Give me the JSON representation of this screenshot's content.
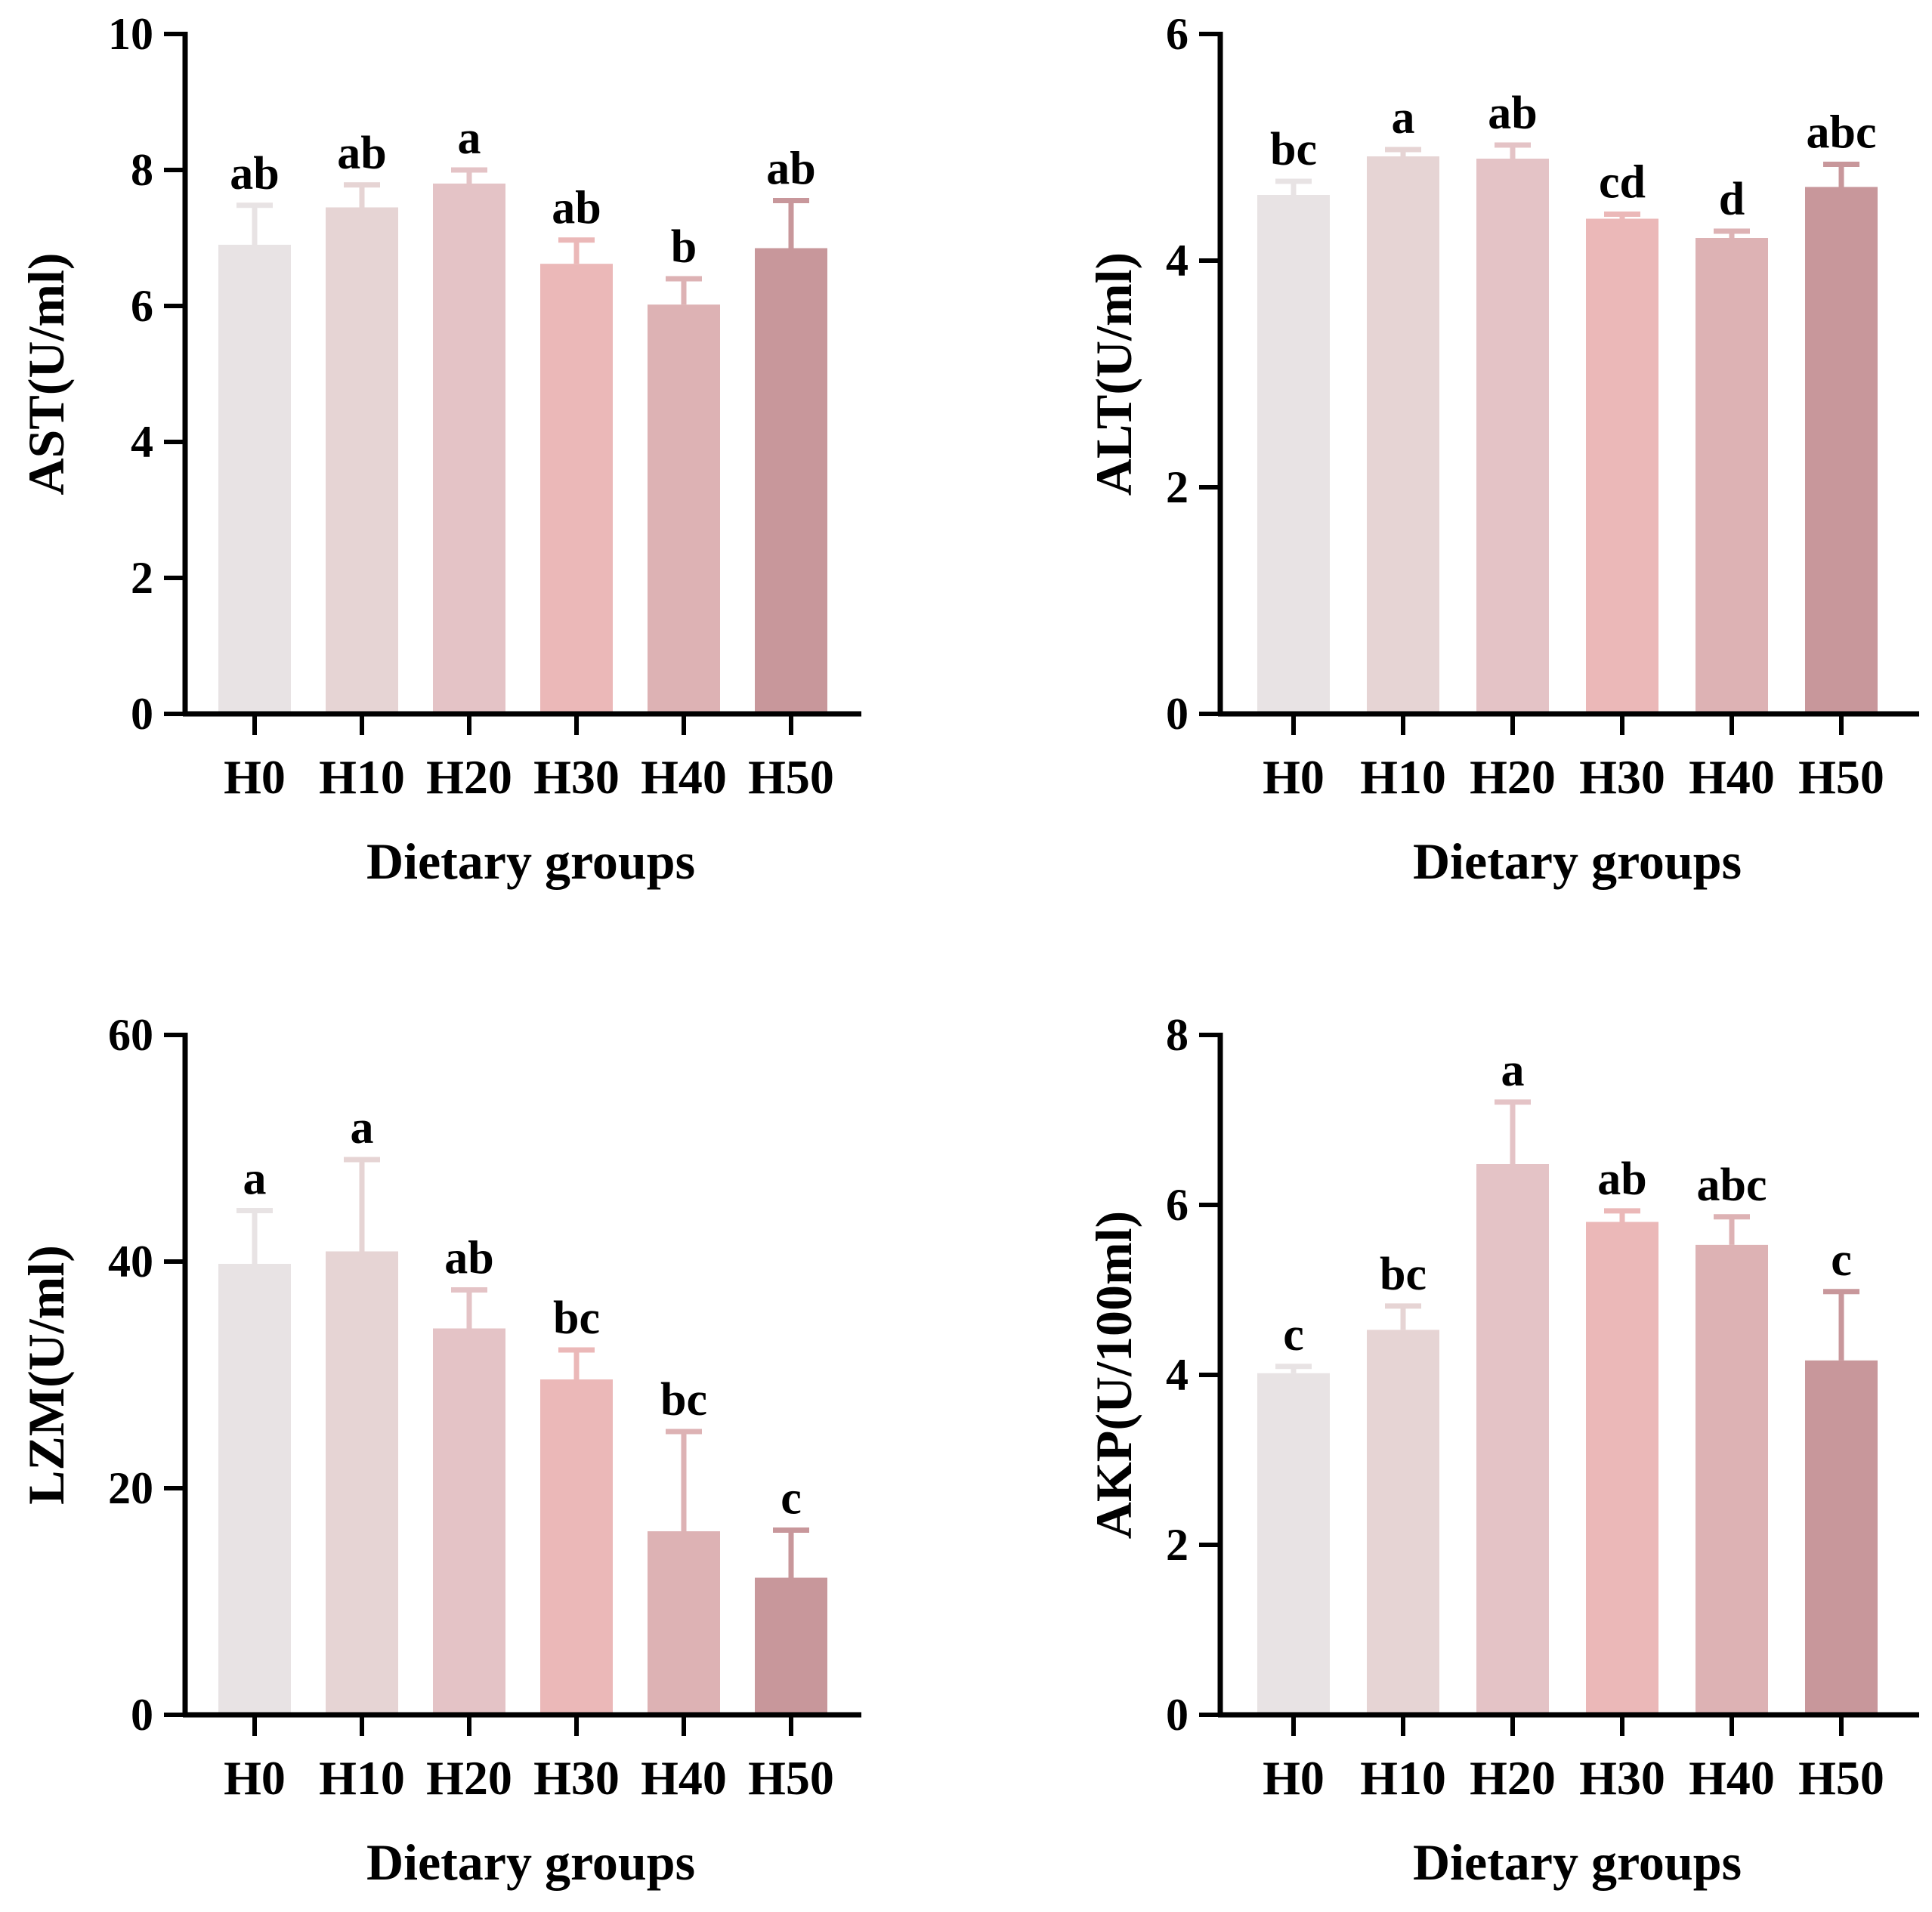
{
  "colors": {
    "bars": [
      "#E8E3E4",
      "#E6D4D4",
      "#E4C3C6",
      "#EBB8B8",
      "#DDB2B4",
      "#C8979B"
    ],
    "axis": "#000000"
  },
  "chart_data": [
    {
      "type": "bar",
      "panel": "top-left",
      "title": "",
      "xlabel": "Dietary groups",
      "ylabel": "AST(U/ml)",
      "categories": [
        "H0",
        "H10",
        "H20",
        "H30",
        "H40",
        "H50"
      ],
      "values": [
        6.9,
        7.45,
        7.8,
        6.62,
        6.02,
        6.85
      ],
      "errors": [
        0.58,
        0.33,
        0.2,
        0.35,
        0.38,
        0.7
      ],
      "significance": [
        "ab",
        "ab",
        "a",
        "ab",
        "b",
        "ab"
      ],
      "ylim": [
        0,
        10
      ],
      "yticks": [
        0,
        2,
        4,
        6,
        8,
        10
      ],
      "ytick_labels": [
        "0",
        "2",
        "4",
        "6",
        "8",
        "10"
      ]
    },
    {
      "type": "bar",
      "panel": "top-right",
      "title": "",
      "xlabel": "Dietary groups",
      "ylabel": "ALT(U/ml)",
      "categories": [
        "H0",
        "H10",
        "H20",
        "H30",
        "H40",
        "H50"
      ],
      "values": [
        4.58,
        4.92,
        4.9,
        4.37,
        4.2,
        4.65
      ],
      "errors": [
        0.12,
        0.06,
        0.12,
        0.04,
        0.06,
        0.2
      ],
      "significance": [
        "bc",
        "a",
        "ab",
        "cd",
        "d",
        "abc"
      ],
      "ylim": [
        0,
        6
      ],
      "yticks": [
        0,
        2,
        4,
        6
      ],
      "ytick_labels": [
        "0",
        "2",
        "4",
        "6"
      ]
    },
    {
      "type": "bar",
      "panel": "bottom-left",
      "title": "",
      "xlabel": "Dietary groups",
      "ylabel": "LZM(U/ml)",
      "categories": [
        "H0",
        "H10",
        "H20",
        "H30",
        "H40",
        "H50"
      ],
      "values": [
        39.8,
        40.9,
        34.1,
        29.6,
        16.2,
        12.1
      ],
      "errors": [
        4.7,
        8.1,
        3.4,
        2.6,
        8.8,
        4.2
      ],
      "significance": [
        "a",
        "a",
        "ab",
        "bc",
        "bc",
        "c"
      ],
      "ylim": [
        0,
        60
      ],
      "yticks": [
        0,
        20,
        40,
        60
      ],
      "ytick_labels": [
        "0",
        "20",
        "40",
        "60"
      ]
    },
    {
      "type": "bar",
      "panel": "bottom-right",
      "title": "",
      "xlabel": "Dietary groups",
      "ylabel": "AKP(U/100ml)",
      "categories": [
        "H0",
        "H10",
        "H20",
        "H30",
        "H40",
        "H50"
      ],
      "values": [
        4.02,
        4.53,
        6.48,
        5.8,
        5.53,
        4.17
      ],
      "errors": [
        0.08,
        0.28,
        0.73,
        0.13,
        0.33,
        0.81
      ],
      "significance": [
        "c",
        "bc",
        "a",
        "ab",
        "abc",
        "c"
      ],
      "ylim": [
        0,
        8
      ],
      "yticks": [
        0,
        2,
        4,
        6,
        8
      ],
      "ytick_labels": [
        "0",
        "2",
        "4",
        "6",
        "8"
      ]
    }
  ]
}
